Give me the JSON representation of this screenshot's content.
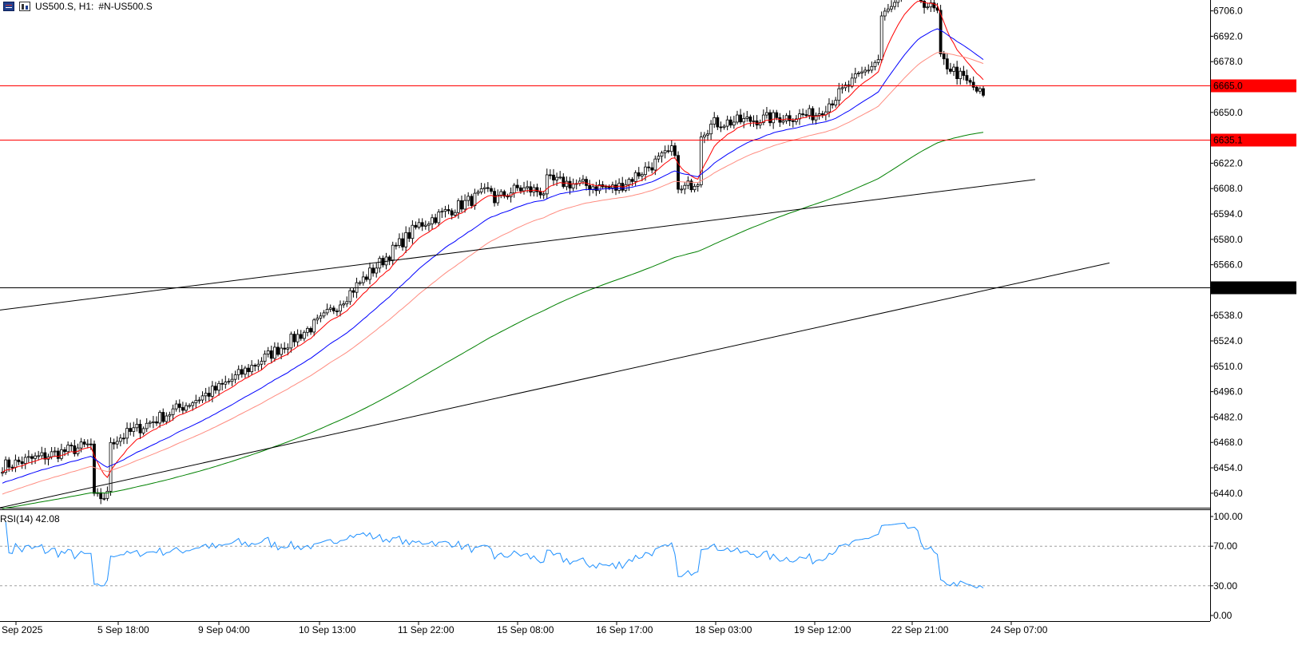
{
  "header": {
    "symbol_period": "US500.S, H1:",
    "description": "#N-US500.S"
  },
  "rsi": {
    "title": "RSI(14) 42.08",
    "levels": [
      100.0,
      70.0,
      30.0,
      0.0
    ],
    "level_labels": [
      "100.00",
      "70.00",
      "30.00",
      "0.00"
    ]
  },
  "colors": {
    "candle": "#000000",
    "ema_fast": "#ff0000",
    "ema_mid": "#0000ff",
    "ema_slow": "#ff8c80",
    "ema_long": "#008000",
    "hline_red": "#ff0000",
    "hline_black": "#000000",
    "rsi_line": "#1e90ff"
  },
  "chart_data": {
    "type": "candlestick",
    "ylim": [
      6432,
      6712
    ],
    "y_ticks": [
      6706.0,
      6692.0,
      6678.0,
      6665.0,
      6650.0,
      6635.1,
      6622.0,
      6608.0,
      6594.0,
      6580.0,
      6566.0,
      6553.6,
      6538.0,
      6524.0,
      6510.0,
      6496.0,
      6482.0,
      6468.0,
      6454.0,
      6440.0
    ],
    "x_tick_labels": [
      "Sep 2025",
      "5 Sep 18:00",
      "9 Sep 04:00",
      "10 Sep 13:00",
      "11 Sep 22:00",
      "15 Sep 08:00",
      "16 Sep 17:00",
      "18 Sep 03:00",
      "19 Sep 12:00",
      "22 Sep 21:00",
      "24 Sep 07:00"
    ],
    "price_levels": [
      {
        "value": 6665.0,
        "label": "6665.0",
        "color": "#ff0000"
      },
      {
        "value": 6635.1,
        "label": "6635.1",
        "color": "#ff0000"
      },
      {
        "value": 6553.6,
        "label": "6553.6",
        "color": "#000000"
      }
    ],
    "trendlines": [
      {
        "from": [
          "start",
          6541
        ],
        "to": [
          "24 Sep 07:00 + 5h",
          6613
        ]
      },
      {
        "from": [
          "start",
          6432
        ],
        "to": [
          "24 Sep 07:00 + 15h",
          6567
        ]
      }
    ],
    "anchors": [
      {
        "x": "start",
        "close": 6455
      },
      {
        "x": "5 Sep 18:00",
        "close": 6470
      },
      {
        "x": "9 Sep 04:00",
        "close": 6498
      },
      {
        "x": "10 Sep 13:00",
        "close": 6535
      },
      {
        "x": "11 Sep 22:00",
        "close": 6588
      },
      {
        "x": "15 Sep 08:00",
        "close": 6614
      },
      {
        "x": "16 Sep 17:00",
        "close": 6608
      },
      {
        "x": "18 Sep 03:00",
        "close": 6644
      },
      {
        "x": "19 Sep 12:00",
        "close": 6649
      },
      {
        "x": "22 Sep 21:00",
        "close": 6695
      },
      {
        "x": "24 Sep 07:00",
        "close": 6661
      }
    ]
  }
}
